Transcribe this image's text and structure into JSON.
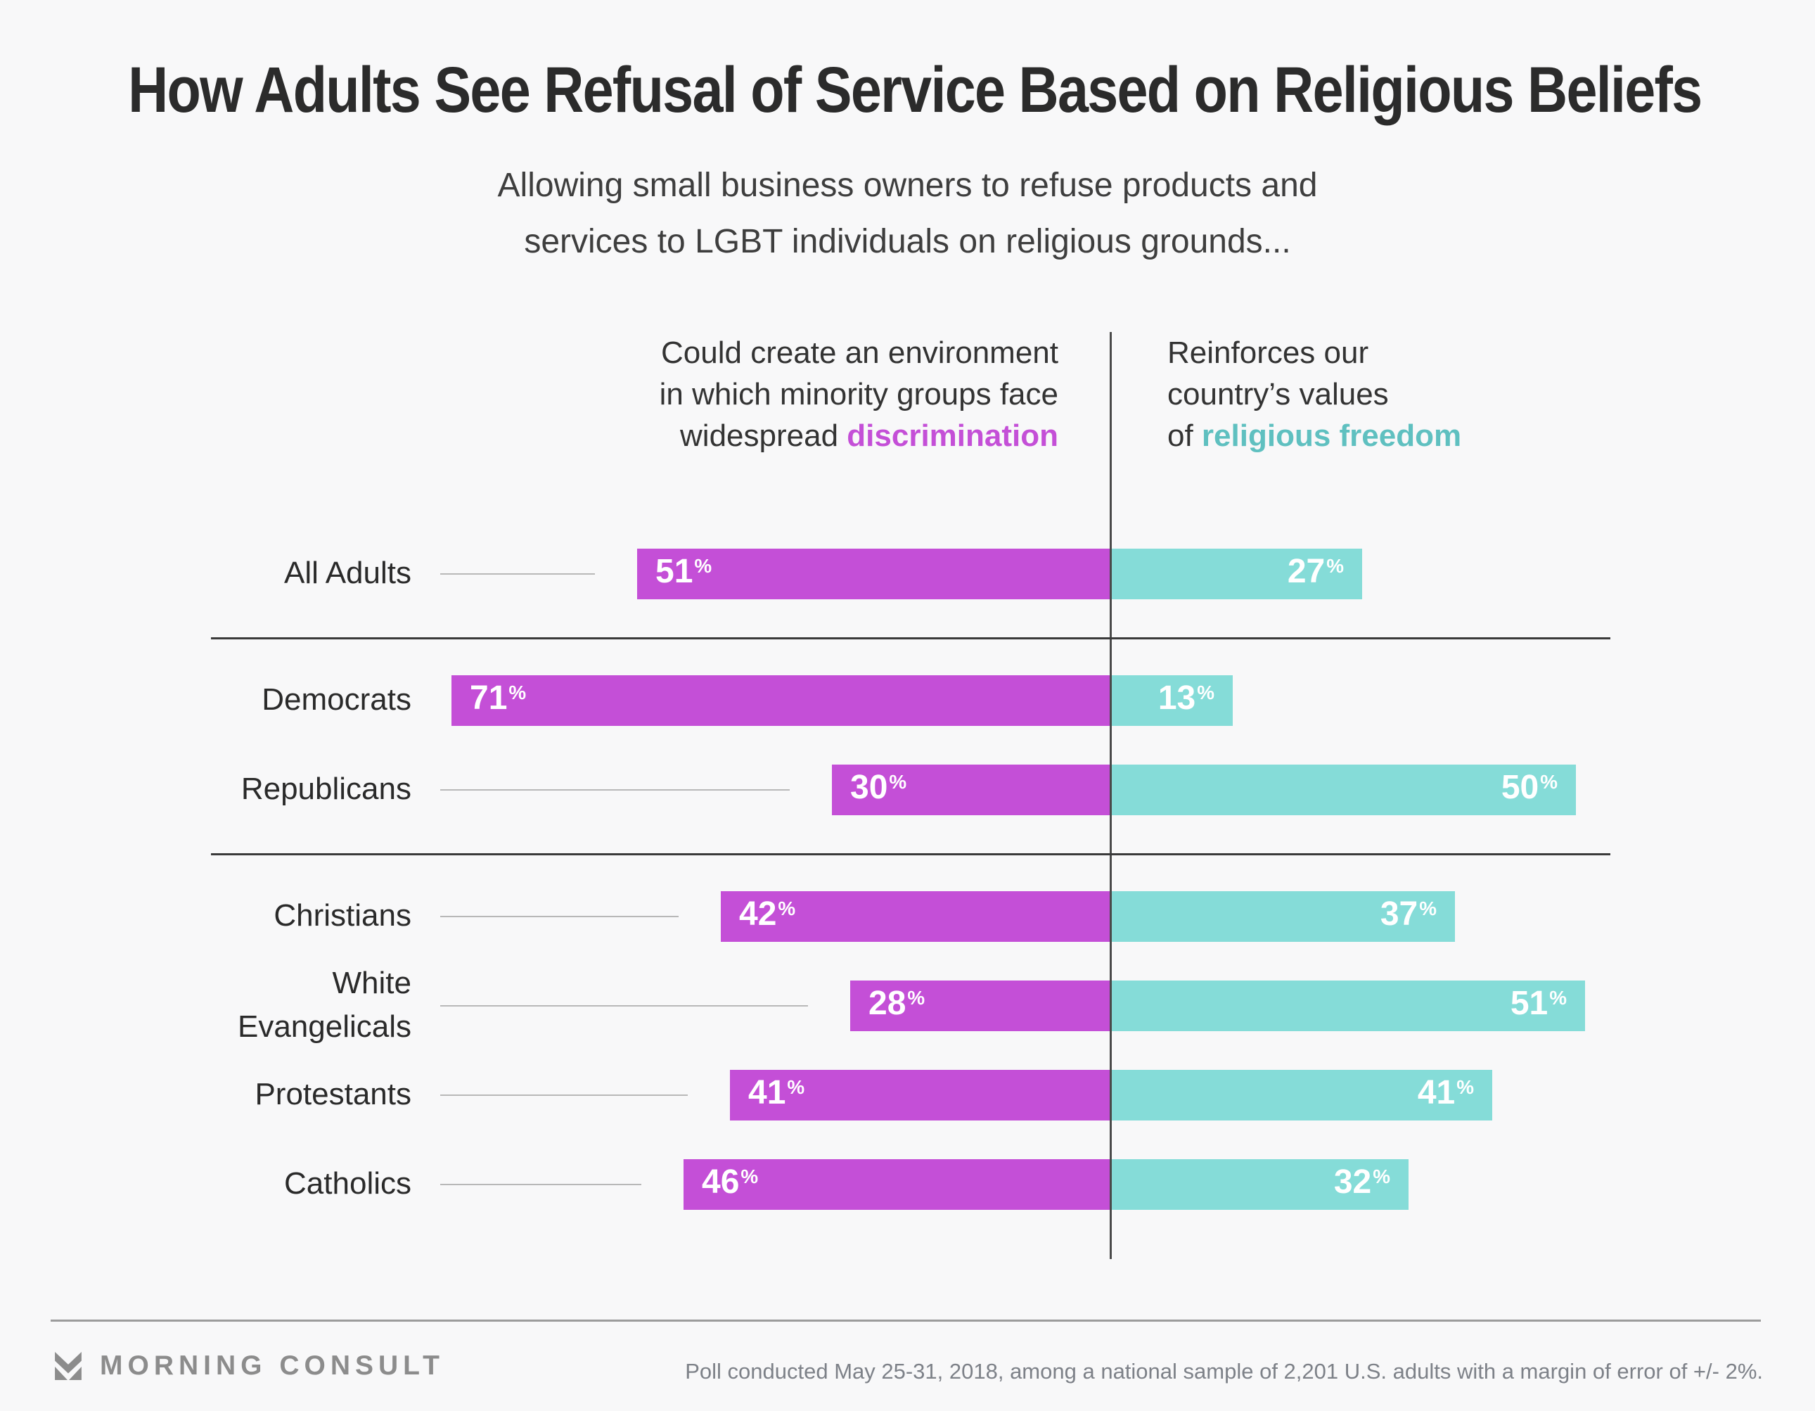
{
  "page": {
    "title": "How Adults See Refusal of Service Based on Religious Beliefs",
    "subtitle_line1": "Allowing small business owners to refuse products and",
    "subtitle_line2": "services to LGBT individuals on religious grounds..."
  },
  "headers": {
    "left": {
      "line1": "Could create an environment",
      "line2": "in which minority groups face",
      "line3_prefix": "widespread ",
      "line3_highlight": "discrimination"
    },
    "right": {
      "line1": "Reinforces our",
      "line2": "country’s values",
      "line3_prefix": "of ",
      "line3_highlight": "religious freedom"
    }
  },
  "chart_data": {
    "type": "bar",
    "orientation": "diverging-horizontal",
    "unit": "%",
    "value_labels": "inside-bars",
    "gridlines": false,
    "categories": [
      "All Adults",
      "Democrats",
      "Republicans",
      "Christians",
      "White Evangelicals",
      "Protestants",
      "Catholics"
    ],
    "series": [
      {
        "name": "Could create an environment in which minority groups face widespread discrimination",
        "side": "left",
        "color": "#c44fd7",
        "values": [
          51,
          71,
          30,
          42,
          28,
          41,
          46
        ]
      },
      {
        "name": "Reinforces our country’s values of religious freedom",
        "side": "right",
        "color": "#85dcd8",
        "values": [
          27,
          13,
          50,
          37,
          51,
          41,
          32
        ]
      }
    ],
    "rows": [
      {
        "label": "All Adults",
        "lines": [
          "All Adults"
        ],
        "discrimination": 51,
        "religious_freedom": 27,
        "leader_line": true
      },
      {
        "label": "Democrats",
        "lines": [
          "Democrats"
        ],
        "discrimination": 71,
        "religious_freedom": 13,
        "leader_line": false
      },
      {
        "label": "Republicans",
        "lines": [
          "Republicans"
        ],
        "discrimination": 30,
        "religious_freedom": 50,
        "leader_line": true
      },
      {
        "label": "Christians",
        "lines": [
          "Christians"
        ],
        "discrimination": 42,
        "religious_freedom": 37,
        "leader_line": true
      },
      {
        "label": "White Evangelicals",
        "lines": [
          "White",
          "Evangelicals"
        ],
        "discrimination": 28,
        "religious_freedom": 51,
        "leader_line": true
      },
      {
        "label": "Protestants",
        "lines": [
          "Protestants"
        ],
        "discrimination": 41,
        "religious_freedom": 41,
        "leader_line": true
      },
      {
        "label": "Catholics",
        "lines": [
          "Catholics"
        ],
        "discrimination": 46,
        "religious_freedom": 32,
        "leader_line": true
      }
    ],
    "group_sizes": [
      1,
      2,
      4
    ],
    "groups": [
      [
        "All Adults"
      ],
      [
        "Democrats",
        "Republicans"
      ],
      [
        "Christians",
        "White Evangelicals",
        "Protestants",
        "Catholics"
      ]
    ]
  },
  "colors": {
    "discrimination": "#c44fd7",
    "religious_freedom_bar": "#85dcd8",
    "religious_freedom_text": "#5fc0c0",
    "background": "#f8f8f9",
    "axis": "#4a4a4a",
    "divider": "#3a3a3a",
    "leader_line": "#b8b8b8",
    "footer_gray": "#8c8c8c"
  },
  "footer": {
    "brand": "MORNING CONSULT",
    "source": "Poll conducted May 25-31, 2018, among a national sample of 2,201 U.S. adults with a margin of error of +/- 2%."
  }
}
